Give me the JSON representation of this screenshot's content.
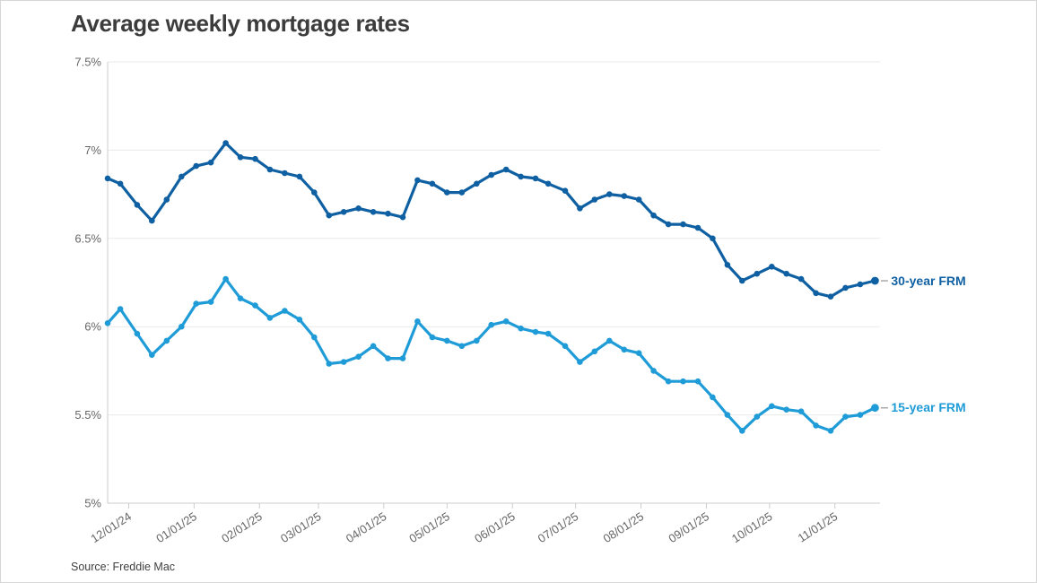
{
  "title": "Average weekly mortgage rates",
  "source": "Source: Freddie Mac",
  "colors": {
    "series_30yr": "#0f60a2",
    "series_15yr": "#1f9cd8",
    "grid": "#eaeaea",
    "axis": "#cccccc",
    "tick_label": "#666666",
    "title_text": "#3c3c3c",
    "source_text": "#3f3f3f",
    "end_dash": "#aaaaaa",
    "background": "#ffffff"
  },
  "chart_data": {
    "type": "line",
    "title": "Average weekly mortgage rates",
    "xlabel": "",
    "ylabel": "",
    "ylim": [
      5,
      7.5
    ],
    "grid": true,
    "legend_position": "right-end-labels",
    "y_ticks": [
      {
        "label": "7.5%",
        "value": 7.5
      },
      {
        "label": "7%",
        "value": 7.0
      },
      {
        "label": "6.5%",
        "value": 6.5
      },
      {
        "label": "6%",
        "value": 6.0
      },
      {
        "label": "5.5%",
        "value": 5.5
      },
      {
        "label": "5%",
        "value": 5.0
      }
    ],
    "x_tick_labels": [
      "12/01/24",
      "01/01/25",
      "02/01/25",
      "03/01/25",
      "04/01/25",
      "05/01/25",
      "06/01/25",
      "07/01/25",
      "08/01/25",
      "09/01/25",
      "10/01/25",
      "11/01/25"
    ],
    "dates": [
      "11/21/24",
      "11/27/24",
      "12/05/24",
      "12/12/24",
      "12/19/24",
      "12/26/24",
      "01/02/25",
      "01/09/25",
      "01/16/25",
      "01/23/25",
      "01/30/25",
      "02/06/25",
      "02/13/25",
      "02/20/25",
      "02/27/25",
      "03/06/25",
      "03/13/25",
      "03/20/25",
      "03/27/25",
      "04/03/25",
      "04/10/25",
      "04/17/25",
      "04/24/25",
      "05/01/25",
      "05/08/25",
      "05/15/25",
      "05/22/25",
      "05/29/25",
      "06/05/25",
      "06/12/25",
      "06/18/25",
      "06/26/25",
      "07/03/25",
      "07/10/25",
      "07/17/25",
      "07/24/25",
      "07/31/25",
      "08/07/25",
      "08/14/25",
      "08/21/25",
      "08/28/25",
      "09/04/25",
      "09/11/25",
      "09/18/25",
      "09/25/25",
      "10/02/25",
      "10/09/25",
      "10/16/25",
      "10/23/25",
      "10/30/25",
      "11/06/25",
      "11/13/25",
      "11/20/25"
    ],
    "series": [
      {
        "name": "30-year FRM",
        "color": "#0f60a2",
        "values": [
          6.84,
          6.81,
          6.69,
          6.6,
          6.72,
          6.85,
          6.91,
          6.93,
          7.04,
          6.96,
          6.95,
          6.89,
          6.87,
          6.85,
          6.76,
          6.63,
          6.65,
          6.67,
          6.65,
          6.64,
          6.62,
          6.83,
          6.81,
          6.76,
          6.76,
          6.81,
          6.86,
          6.89,
          6.85,
          6.84,
          6.81,
          6.77,
          6.67,
          6.72,
          6.75,
          6.74,
          6.72,
          6.63,
          6.58,
          6.58,
          6.56,
          6.5,
          6.35,
          6.26,
          6.3,
          6.34,
          6.3,
          6.27,
          6.19,
          6.17,
          6.22,
          6.24,
          6.26
        ]
      },
      {
        "name": "15-year FRM",
        "color": "#1f9cd8",
        "values": [
          6.02,
          6.1,
          5.96,
          5.84,
          5.92,
          6.0,
          6.13,
          6.14,
          6.27,
          6.16,
          6.12,
          6.05,
          6.09,
          6.04,
          5.94,
          5.79,
          5.8,
          5.83,
          5.89,
          5.82,
          5.82,
          6.03,
          5.94,
          5.92,
          5.89,
          5.92,
          6.01,
          6.03,
          5.99,
          5.97,
          5.96,
          5.89,
          5.8,
          5.86,
          5.92,
          5.87,
          5.85,
          5.75,
          5.69,
          5.69,
          5.69,
          5.6,
          5.5,
          5.41,
          5.49,
          5.55,
          5.53,
          5.52,
          5.44,
          5.41,
          5.49,
          5.5,
          5.54
        ]
      }
    ]
  }
}
